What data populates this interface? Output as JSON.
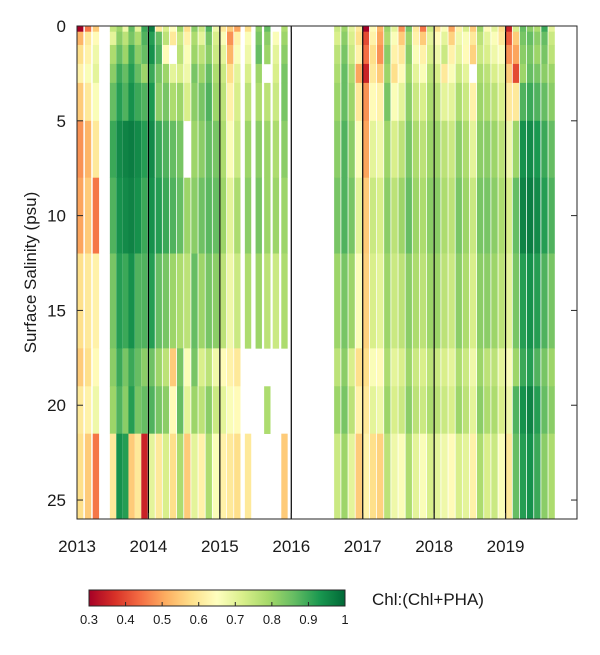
{
  "chart_data": {
    "type": "heatmap",
    "title": "",
    "xlabel": "",
    "ylabel": "Surface Salinity (psu)",
    "xlim": [
      2013,
      2020
    ],
    "ylim": [
      0,
      26
    ],
    "y_reversed": true,
    "xticks": [
      2013,
      2014,
      2015,
      2016,
      2017,
      2018,
      2019
    ],
    "xtick_labels": [
      "2013",
      "2014",
      "2015",
      "2016",
      "2017",
      "2018",
      "2019"
    ],
    "yticks": [
      0,
      5,
      10,
      15,
      20,
      25
    ],
    "ytick_labels": [
      "0",
      "5",
      "10",
      "15",
      "20",
      "25"
    ],
    "year_boundaries": [
      2014,
      2015,
      2016,
      2017,
      2018,
      2019
    ],
    "salinity_bins": [
      0,
      0.3,
      1,
      2,
      3,
      5,
      8,
      12,
      17,
      19,
      21.5,
      26
    ],
    "time_columns": [
      2013.0,
      2013.11,
      2013.22,
      2013.35,
      2013.46,
      2013.55,
      2013.64,
      2013.72,
      2013.81,
      2013.9,
      2014.0,
      2014.1,
      2014.2,
      2014.3,
      2014.4,
      2014.5,
      2014.6,
      2014.7,
      2014.8,
      2014.9,
      2015.0,
      2015.1,
      2015.2,
      2015.35,
      2015.5,
      2015.62,
      2015.74,
      2015.86,
      2016.6,
      2016.7,
      2016.8,
      2016.9,
      2017.0,
      2017.1,
      2017.2,
      2017.3,
      2017.4,
      2017.5,
      2017.6,
      2017.7,
      2017.8,
      2017.9,
      2018.0,
      2018.1,
      2018.2,
      2018.3,
      2018.4,
      2018.5,
      2018.6,
      2018.7,
      2018.8,
      2018.9,
      2019.0,
      2019.1,
      2019.2,
      2019.3,
      2019.4,
      2019.5,
      2019.6
    ],
    "column_width_years": 0.085,
    "gap_note": "",
    "values": [
      [
        0.3,
        0.52,
        0.58,
        0.62,
        0.55,
        0.48,
        0.5,
        0.58,
        0.55,
        0.6,
        0.58
      ],
      [
        0.45,
        0.6,
        0.62,
        0.66,
        0.6,
        0.52,
        0.55,
        0.6,
        0.58,
        0.62,
        0.55
      ],
      [
        0.55,
        0.64,
        0.68,
        0.7,
        0.66,
        0.6,
        0.45,
        0.62,
        0.64,
        0.68,
        0.45
      ],
      [
        null,
        null,
        null,
        null,
        null,
        null,
        null,
        null,
        null,
        null,
        null
      ],
      [
        0.75,
        0.7,
        0.78,
        0.82,
        0.86,
        0.9,
        0.88,
        0.84,
        0.82,
        0.8,
        0.6
      ],
      [
        0.8,
        0.82,
        0.86,
        0.9,
        0.92,
        0.95,
        0.94,
        0.92,
        0.9,
        0.88,
        0.94
      ],
      [
        0.68,
        0.76,
        0.8,
        0.86,
        0.88,
        0.96,
        0.95,
        0.9,
        0.84,
        0.82,
        0.92
      ],
      [
        0.86,
        0.84,
        0.9,
        0.92,
        0.94,
        0.97,
        0.96,
        0.94,
        0.9,
        0.92,
        0.55
      ],
      [
        0.7,
        0.78,
        0.82,
        0.86,
        0.9,
        0.95,
        0.94,
        0.88,
        0.86,
        0.84,
        0.6
      ],
      [
        0.9,
        0.88,
        0.86,
        0.8,
        0.88,
        0.92,
        0.9,
        0.88,
        0.82,
        0.86,
        0.35
      ],
      [
        0.97,
        0.92,
        0.94,
        0.9,
        0.93,
        0.95,
        0.94,
        0.92,
        0.85,
        0.88,
        0.7
      ],
      [
        0.6,
        0.86,
        0.88,
        0.84,
        0.82,
        0.9,
        0.92,
        0.86,
        0.8,
        0.84,
        0.6
      ],
      [
        0.72,
        0.76,
        0.64,
        0.8,
        0.84,
        0.88,
        0.9,
        0.84,
        0.76,
        0.82,
        0.72
      ],
      [
        0.65,
        0.6,
        null,
        0.7,
        0.78,
        0.86,
        0.88,
        0.8,
        0.55,
        0.64,
        0.58
      ],
      [
        0.8,
        0.74,
        0.76,
        0.72,
        0.8,
        0.84,
        0.86,
        0.78,
        0.84,
        0.86,
        0.78
      ],
      [
        0.58,
        0.62,
        0.66,
        0.68,
        0.72,
        null,
        0.8,
        0.76,
        0.66,
        0.7,
        0.55
      ],
      [
        0.82,
        0.78,
        0.8,
        0.84,
        0.82,
        0.8,
        0.82,
        0.86,
        0.84,
        0.8,
        0.7
      ],
      [
        0.74,
        0.7,
        0.76,
        0.8,
        0.84,
        0.82,
        0.85,
        0.8,
        0.72,
        0.76,
        0.62
      ],
      [
        0.88,
        0.84,
        0.82,
        0.86,
        0.88,
        0.86,
        0.87,
        0.84,
        0.76,
        0.82,
        0.78
      ],
      [
        0.68,
        0.72,
        0.74,
        0.78,
        0.8,
        0.84,
        0.86,
        0.82,
        0.68,
        0.74,
        0.66
      ],
      [
        0.6,
        0.66,
        0.7,
        0.74,
        0.76,
        0.78,
        0.8,
        0.76,
        0.64,
        0.7,
        0.62
      ],
      [
        0.55,
        0.48,
        0.52,
        0.58,
        0.62,
        0.66,
        0.7,
        0.68,
        0.62,
        0.66,
        0.6
      ],
      [
        0.5,
        0.62,
        0.66,
        0.7,
        0.72,
        0.74,
        0.78,
        0.74,
        0.6,
        0.64,
        0.58
      ],
      [
        0.58,
        0.66,
        0.68,
        0.72,
        0.76,
        0.8,
        0.82,
        0.78,
        null,
        null,
        0.6
      ],
      [
        0.82,
        0.84,
        0.86,
        0.8,
        0.78,
        0.82,
        0.84,
        0.8,
        null,
        null,
        null
      ],
      [
        0.86,
        0.82,
        0.8,
        null,
        0.76,
        0.8,
        0.8,
        0.76,
        null,
        0.78,
        null
      ],
      [
        null,
        0.66,
        0.7,
        0.72,
        0.74,
        0.78,
        0.8,
        0.74,
        null,
        null,
        null
      ],
      [
        0.78,
        0.8,
        0.82,
        0.84,
        0.84,
        0.82,
        0.8,
        0.78,
        null,
        null,
        0.55
      ],
      [
        0.74,
        0.72,
        0.76,
        0.78,
        0.8,
        0.82,
        0.84,
        0.8,
        0.76,
        0.8,
        0.74
      ],
      [
        0.8,
        0.82,
        0.84,
        0.86,
        0.86,
        0.88,
        0.88,
        0.84,
        0.82,
        0.84,
        0.8
      ],
      [
        0.7,
        0.72,
        0.74,
        0.78,
        0.8,
        0.82,
        0.84,
        0.8,
        0.72,
        0.76,
        0.7
      ],
      [
        0.6,
        0.58,
        0.62,
        0.5,
        0.6,
        0.66,
        0.7,
        0.66,
        0.58,
        0.62,
        0.55
      ],
      [
        0.3,
        0.4,
        0.44,
        0.35,
        0.48,
        0.5,
        0.55,
        0.56,
        0.58,
        0.6,
        0.62
      ],
      [
        0.64,
        0.62,
        0.58,
        0.6,
        0.64,
        0.7,
        0.74,
        0.72,
        0.66,
        0.7,
        0.58
      ],
      [
        0.52,
        0.5,
        0.48,
        0.55,
        0.62,
        0.68,
        0.72,
        0.7,
        0.64,
        0.68,
        0.56
      ],
      [
        0.8,
        0.78,
        0.82,
        0.8,
        0.84,
        0.8,
        0.82,
        0.8,
        0.78,
        0.8,
        0.76
      ],
      [
        0.7,
        0.66,
        0.62,
        0.58,
        0.66,
        0.72,
        0.76,
        0.74,
        0.7,
        0.72,
        0.68
      ],
      [
        0.48,
        0.55,
        0.6,
        0.64,
        0.7,
        0.76,
        0.8,
        0.76,
        0.72,
        0.74,
        0.66
      ],
      [
        0.84,
        0.8,
        0.82,
        0.8,
        0.82,
        0.84,
        0.86,
        0.82,
        0.8,
        0.82,
        0.78
      ],
      [
        0.6,
        0.62,
        0.66,
        0.7,
        0.74,
        0.78,
        0.8,
        0.78,
        0.74,
        0.76,
        0.7
      ],
      [
        0.45,
        0.55,
        0.62,
        0.66,
        0.72,
        0.76,
        0.78,
        0.76,
        0.72,
        0.74,
        0.66
      ],
      [
        0.74,
        0.7,
        0.72,
        0.76,
        0.78,
        0.8,
        0.82,
        0.8,
        0.76,
        0.78,
        0.72
      ],
      [
        0.58,
        0.64,
        0.68,
        0.72,
        0.76,
        0.8,
        0.82,
        0.8,
        0.74,
        0.76,
        0.7
      ],
      [
        0.66,
        0.7,
        0.74,
        0.6,
        0.7,
        0.76,
        0.78,
        0.76,
        0.72,
        0.74,
        0.68
      ],
      [
        0.5,
        0.56,
        0.62,
        0.66,
        0.7,
        0.74,
        0.76,
        0.74,
        0.7,
        0.72,
        0.64
      ],
      [
        0.62,
        0.68,
        0.7,
        0.74,
        0.78,
        0.82,
        0.84,
        0.82,
        0.78,
        0.8,
        0.72
      ],
      [
        0.72,
        0.66,
        0.64,
        0.7,
        0.74,
        0.78,
        0.8,
        0.78,
        0.74,
        0.76,
        0.7
      ],
      [
        0.55,
        0.6,
        0.56,
        null,
        0.62,
        0.7,
        0.74,
        0.72,
        0.68,
        0.7,
        0.62
      ],
      [
        0.8,
        0.76,
        0.74,
        0.78,
        0.8,
        0.82,
        0.84,
        0.82,
        0.8,
        0.82,
        0.78
      ],
      [
        0.64,
        0.7,
        0.72,
        0.76,
        0.78,
        0.82,
        0.84,
        0.82,
        0.76,
        0.78,
        0.72
      ],
      [
        0.7,
        0.66,
        0.68,
        0.72,
        0.76,
        0.8,
        0.82,
        0.8,
        0.76,
        0.78,
        0.74
      ],
      [
        0.58,
        0.6,
        0.66,
        0.7,
        0.72,
        0.76,
        0.78,
        0.76,
        0.7,
        0.72,
        0.66
      ],
      [
        0.35,
        0.42,
        0.48,
        0.55,
        0.6,
        0.68,
        0.72,
        0.7,
        0.66,
        0.68,
        0.6
      ],
      [
        0.72,
        0.55,
        0.5,
        0.4,
        0.6,
        0.8,
        0.86,
        0.84,
        0.8,
        0.88,
        0.86
      ],
      [
        0.86,
        0.84,
        0.82,
        0.8,
        0.88,
        0.94,
        0.96,
        0.92,
        0.9,
        0.94,
        0.92
      ],
      [
        0.82,
        0.86,
        0.84,
        0.86,
        0.9,
        0.95,
        0.97,
        0.94,
        0.92,
        0.96,
        0.94
      ],
      [
        0.78,
        0.82,
        0.8,
        0.84,
        0.88,
        0.93,
        0.95,
        0.92,
        0.88,
        0.92,
        0.9
      ],
      [
        0.9,
        0.86,
        0.84,
        0.82,
        0.86,
        0.9,
        0.92,
        0.88,
        0.84,
        0.86,
        0.82
      ],
      [
        0.7,
        0.74,
        0.76,
        0.8,
        0.82,
        0.86,
        0.88,
        0.84,
        0.8,
        0.82,
        0.78
      ]
    ],
    "colorbar": {
      "label": "Chl:(Chl+PHA)",
      "min": 0.3,
      "max": 1,
      "ticks": [
        0.3,
        0.4,
        0.5,
        0.6,
        0.7,
        0.8,
        0.9,
        1
      ],
      "tick_labels": [
        "0.3",
        "0.4",
        "0.5",
        "0.6",
        "0.7",
        "0.8",
        "0.9",
        "1"
      ],
      "colormap": "red-yellow-green",
      "stops": [
        "#a50026",
        "#d73027",
        "#f46d43",
        "#fdae61",
        "#fee08b",
        "#ffffbf",
        "#d9ef8b",
        "#a6d96a",
        "#66bd63",
        "#1a9850",
        "#006837"
      ]
    },
    "grid": false,
    "legend": "colorbar-bottom"
  }
}
